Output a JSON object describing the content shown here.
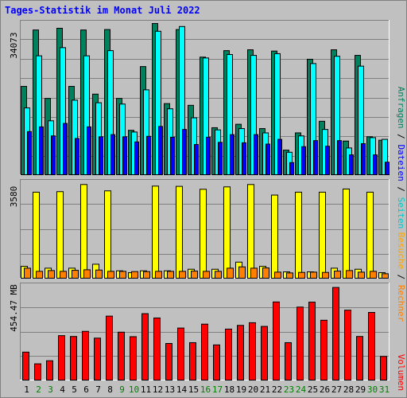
{
  "chart_title": "Tages-Statistik im Monat Juli 2022",
  "colors": {
    "anfragen": "#00805c",
    "dateien": "#0000ff",
    "seiten": "#00ffff",
    "besuche": "#ffff00",
    "rechner": "#ff8000",
    "volumen": "#ff0000",
    "weekday": "#000000",
    "weekend": "#008000",
    "title": "#0000ff"
  },
  "chart_data": [
    {
      "type": "bar",
      "panel": "top",
      "max_label": "34073",
      "categories": [
        "1",
        "2",
        "3",
        "4",
        "5",
        "6",
        "7",
        "8",
        "9",
        "10",
        "11",
        "12",
        "13",
        "14",
        "15",
        "16",
        "17",
        "18",
        "19",
        "20",
        "21",
        "22",
        "23",
        "24",
        "25",
        "26",
        "27",
        "28",
        "29",
        "30",
        "31"
      ],
      "ylim": [
        0,
        34073
      ],
      "series": [
        {
          "name": "Anfragen",
          "values": [
            20700,
            33800,
            17900,
            34200,
            20700,
            33800,
            18900,
            33900,
            17900,
            10500,
            25300,
            35300,
            16700,
            33900,
            16300,
            27500,
            11100,
            29000,
            11900,
            29200,
            10900,
            28900,
            5900,
            9900,
            27000,
            12600,
            29200,
            8000,
            27900,
            9000,
            8200
          ]
        },
        {
          "name": "Seiten",
          "values": [
            15700,
            27800,
            12700,
            29700,
            17500,
            27800,
            16900,
            29000,
            16600,
            10100,
            19900,
            33500,
            15500,
            34600,
            13400,
            27300,
            10600,
            28100,
            10900,
            27900,
            9900,
            28300,
            5400,
            9200,
            26000,
            10700,
            27700,
            6400,
            25400,
            8800,
            8400
          ]
        },
        {
          "name": "Dateien",
          "values": [
            10200,
            11300,
            9200,
            12100,
            8600,
            11300,
            9000,
            9500,
            9000,
            7800,
            9100,
            11400,
            8900,
            10700,
            7200,
            8900,
            7700,
            9500,
            7600,
            9500,
            7300,
            8400,
            3000,
            6700,
            8100,
            6800,
            8100,
            4800,
            7400,
            4800,
            3100
          ]
        }
      ]
    },
    {
      "type": "bar",
      "panel": "middle",
      "max_label": "3580",
      "categories": [
        "1",
        "2",
        "3",
        "4",
        "5",
        "6",
        "7",
        "8",
        "9",
        "10",
        "11",
        "12",
        "13",
        "14",
        "15",
        "16",
        "17",
        "18",
        "19",
        "20",
        "21",
        "22",
        "23",
        "24",
        "25",
        "26",
        "27",
        "28",
        "29",
        "30",
        "31"
      ],
      "ylim": [
        0,
        3580
      ],
      "series": [
        {
          "name": "Besuche",
          "values": [
            480,
            3290,
            410,
            3310,
            410,
            3580,
            560,
            3340,
            310,
            240,
            310,
            3520,
            310,
            3510,
            370,
            3400,
            370,
            3490,
            640,
            3580,
            480,
            3180,
            270,
            3290,
            270,
            3290,
            410,
            3410,
            370,
            3290,
            240
          ]
        },
        {
          "name": "Rechner",
          "values": [
            410,
            290,
            320,
            290,
            330,
            350,
            340,
            290,
            290,
            280,
            280,
            290,
            290,
            290,
            300,
            290,
            290,
            410,
            460,
            410,
            420,
            260,
            230,
            250,
            260,
            250,
            300,
            320,
            260,
            290,
            200
          ]
        }
      ]
    },
    {
      "type": "bar",
      "panel": "bottom",
      "max_label": "454.47 MB",
      "categories": [
        "1",
        "2",
        "3",
        "4",
        "5",
        "6",
        "7",
        "8",
        "9",
        "10",
        "11",
        "12",
        "13",
        "14",
        "15",
        "16",
        "17",
        "18",
        "19",
        "20",
        "21",
        "22",
        "23",
        "24",
        "25",
        "26",
        "27",
        "28",
        "29",
        "30",
        "31"
      ],
      "ylim": [
        0,
        454.47
      ],
      "series": [
        {
          "name": "Volumen",
          "values": [
            140,
            83,
            98,
            220,
            216,
            241,
            208,
            315,
            237,
            215,
            327,
            306,
            182,
            257,
            186,
            276,
            175,
            252,
            270,
            283,
            265,
            384,
            186,
            359,
            383,
            295,
            454.47,
            344,
            216,
            333,
            119
          ]
        }
      ]
    }
  ],
  "x_labels": [
    {
      "label": "1",
      "weekend": false
    },
    {
      "label": "2",
      "weekend": true
    },
    {
      "label": "3",
      "weekend": true
    },
    {
      "label": "4",
      "weekend": false
    },
    {
      "label": "5",
      "weekend": false
    },
    {
      "label": "6",
      "weekend": false
    },
    {
      "label": "7",
      "weekend": false
    },
    {
      "label": "8",
      "weekend": false
    },
    {
      "label": "9",
      "weekend": true
    },
    {
      "label": "10",
      "weekend": true
    },
    {
      "label": "11",
      "weekend": false
    },
    {
      "label": "12",
      "weekend": false
    },
    {
      "label": "13",
      "weekend": false
    },
    {
      "label": "14",
      "weekend": false
    },
    {
      "label": "15",
      "weekend": false
    },
    {
      "label": "16",
      "weekend": true
    },
    {
      "label": "17",
      "weekend": true
    },
    {
      "label": "18",
      "weekend": false
    },
    {
      "label": "19",
      "weekend": false
    },
    {
      "label": "20",
      "weekend": false
    },
    {
      "label": "21",
      "weekend": false
    },
    {
      "label": "22",
      "weekend": false
    },
    {
      "label": "23",
      "weekend": true
    },
    {
      "label": "24",
      "weekend": true
    },
    {
      "label": "25",
      "weekend": false
    },
    {
      "label": "26",
      "weekend": false
    },
    {
      "label": "27",
      "weekend": false
    },
    {
      "label": "28",
      "weekend": false
    },
    {
      "label": "29",
      "weekend": false
    },
    {
      "label": "30",
      "weekend": true
    },
    {
      "label": "31",
      "weekend": true
    }
  ],
  "right_legends": {
    "top": [
      {
        "text": "Anfragen",
        "color": "#00805c"
      },
      {
        "text": "Dateien",
        "color": "#0000ff"
      },
      {
        "text": "Seiten",
        "color": "#00c8c8"
      }
    ],
    "middle": [
      {
        "text": "Besuche",
        "color": "#ffa500"
      },
      {
        "text": "Rechner",
        "color": "#ff8000"
      }
    ],
    "bottom": [
      {
        "text": "Volumen",
        "color": "#ff0000"
      }
    ],
    "separator": "/"
  }
}
